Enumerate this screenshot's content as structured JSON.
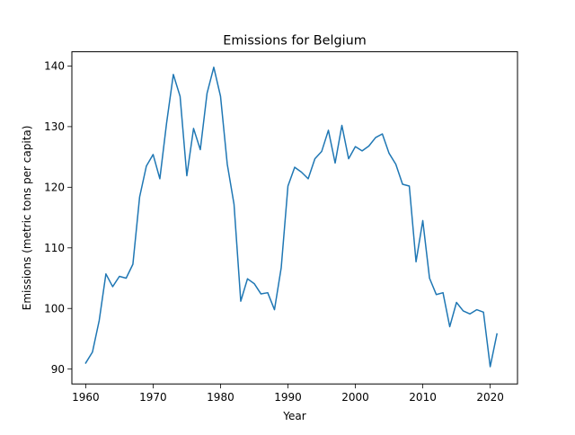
{
  "chart_data": {
    "type": "line",
    "title": "Emissions for Belgium",
    "xlabel": "Year",
    "ylabel": "Emissions (metric tons per capita)",
    "xlim": [
      1957.95,
      2024.05
    ],
    "ylim": [
      87.55,
      142.35
    ],
    "xticks": [
      1960,
      1970,
      1980,
      1990,
      2000,
      2010,
      2020
    ],
    "yticks": [
      90,
      100,
      110,
      120,
      130,
      140
    ],
    "grid": false,
    "line_color": "#1f77b4",
    "series": [
      {
        "x": [
          1960,
          1961,
          1962,
          1963,
          1964,
          1965,
          1966,
          1967,
          1968,
          1969,
          1970,
          1971,
          1972,
          1973,
          1974,
          1975,
          1976,
          1977,
          1978,
          1979,
          1980,
          1981,
          1982,
          1983,
          1984,
          1985,
          1986,
          1987,
          1988,
          1989,
          1990,
          1991,
          1992,
          1993,
          1994,
          1995,
          1996,
          1997,
          1998,
          1999,
          2000,
          2001,
          2002,
          2003,
          2004,
          2005,
          2006,
          2007,
          2008,
          2009,
          2010,
          2011,
          2012,
          2013,
          2014,
          2015,
          2016,
          2017,
          2018,
          2019,
          2020,
          2021
        ],
        "values": [
          91.0,
          92.8,
          98.0,
          105.7,
          103.6,
          105.3,
          105.0,
          107.3,
          118.4,
          123.5,
          125.4,
          121.4,
          130.6,
          138.6,
          135.0,
          121.9,
          129.7,
          126.2,
          135.5,
          139.8,
          135.0,
          123.8,
          117.2,
          101.2,
          104.9,
          104.1,
          102.4,
          102.6,
          99.8,
          106.7,
          120.2,
          123.3,
          122.5,
          121.4,
          124.7,
          125.9,
          129.4,
          124.0,
          130.2,
          124.7,
          126.7,
          126.0,
          126.8,
          128.2,
          128.8,
          125.6,
          123.8,
          120.5,
          120.2,
          107.7,
          114.5,
          105.0,
          102.3,
          102.6,
          97.0,
          101.0,
          99.6,
          99.1,
          99.8,
          99.4,
          90.4,
          95.8
        ]
      }
    ]
  }
}
